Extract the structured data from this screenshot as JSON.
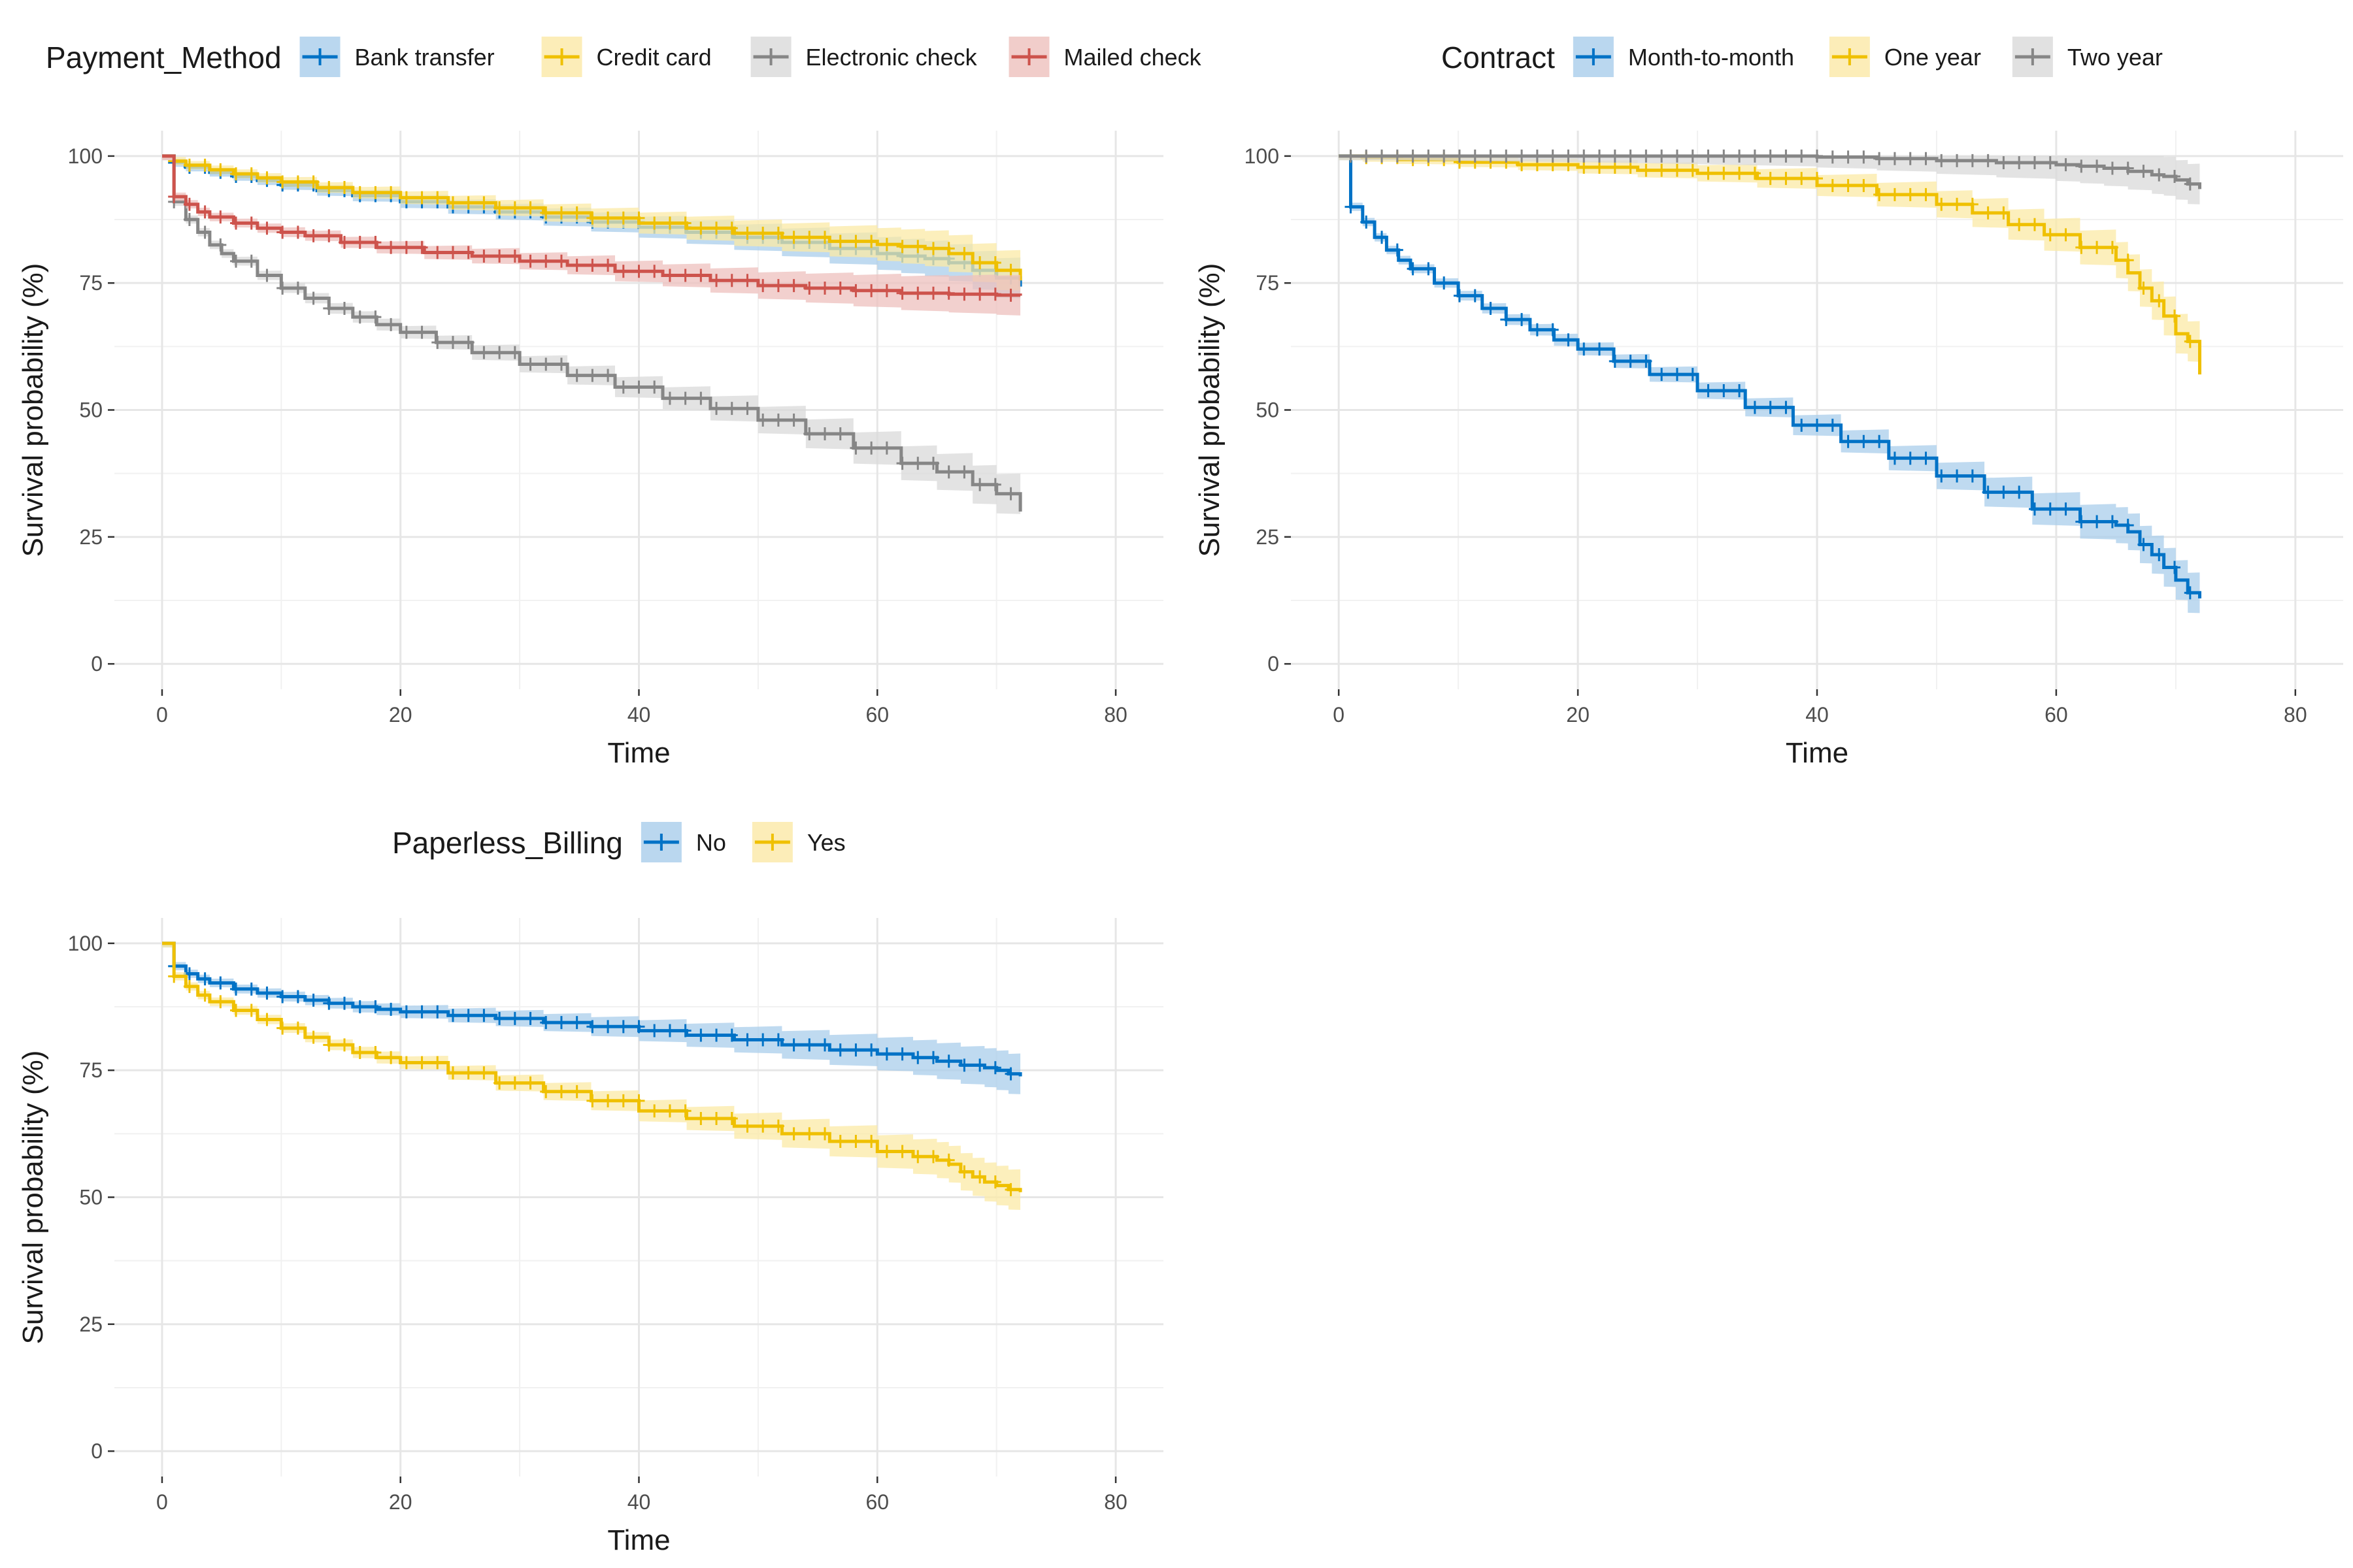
{
  "chart_data": [
    {
      "type": "line",
      "legend": {
        "title": "Payment_Method",
        "placement": "top"
      },
      "xlabel": "Time",
      "ylabel": "Survival probability (%)",
      "xlim": [
        0,
        80
      ],
      "ylim": [
        0,
        100
      ],
      "xticks": [
        0,
        20,
        40,
        60,
        80
      ],
      "yticks": [
        0,
        25,
        50,
        75,
        100
      ],
      "grid": true,
      "series": [
        {
          "name": "Bank transfer",
          "color": "#0072C6",
          "fill": "#A9CDEB",
          "x": [
            0,
            1,
            2,
            4,
            6,
            8,
            10,
            13,
            16,
            20,
            24,
            28,
            32,
            36,
            40,
            44,
            48,
            52,
            56,
            60,
            62,
            64,
            66,
            68,
            70,
            72
          ],
          "y": [
            100,
            98.7,
            97.8,
            96.8,
            96.0,
            95.2,
            94.3,
            93.2,
            92.2,
            91.0,
            90.0,
            89.0,
            88.0,
            87.0,
            86.0,
            85.0,
            84.0,
            83.0,
            81.8,
            80.8,
            80.3,
            79.8,
            79.0,
            77.5,
            76.0,
            74.3
          ]
        },
        {
          "name": "Credit card",
          "color": "#EFC000",
          "fill": "#FBE9A6",
          "x": [
            0,
            1,
            2,
            4,
            6,
            8,
            10,
            13,
            16,
            20,
            24,
            28,
            32,
            36,
            40,
            44,
            48,
            52,
            56,
            60,
            62,
            64,
            66,
            68,
            70,
            72
          ],
          "y": [
            100,
            99.0,
            98.2,
            97.3,
            96.5,
            95.7,
            94.9,
            93.8,
            92.8,
            91.8,
            90.8,
            89.8,
            88.8,
            87.8,
            86.8,
            85.8,
            84.8,
            84.0,
            83.2,
            82.6,
            82.2,
            81.8,
            80.8,
            79.0,
            77.5,
            75.5
          ]
        },
        {
          "name": "Electronic check",
          "color": "#868686",
          "fill": "#D9D9D9",
          "x": [
            0,
            1,
            2,
            3,
            4,
            5,
            6,
            8,
            10,
            12,
            14,
            16,
            18,
            20,
            23,
            26,
            30,
            34,
            38,
            42,
            46,
            50,
            54,
            58,
            62,
            65,
            68,
            70,
            72
          ],
          "y": [
            100,
            91.0,
            87.5,
            85.0,
            82.5,
            80.8,
            79.3,
            76.5,
            74.0,
            72.0,
            70.0,
            68.3,
            66.8,
            65.3,
            63.3,
            61.3,
            59.0,
            56.8,
            54.5,
            52.3,
            50.3,
            48.0,
            45.3,
            42.5,
            39.5,
            37.8,
            35.3,
            33.5,
            30.0
          ]
        },
        {
          "name": "Mailed check",
          "color": "#CD534C",
          "fill": "#EEC0BD",
          "x": [
            0,
            1,
            2,
            3,
            4,
            6,
            8,
            10,
            12,
            15,
            18,
            22,
            26,
            30,
            34,
            38,
            42,
            46,
            50,
            54,
            58,
            62,
            66,
            70,
            72
          ],
          "y": [
            100,
            92.0,
            90.5,
            89.0,
            88.0,
            86.8,
            85.8,
            85.0,
            84.3,
            83.0,
            82.0,
            81.0,
            80.3,
            79.3,
            78.5,
            77.3,
            76.5,
            75.5,
            74.5,
            74.0,
            73.5,
            73.0,
            72.8,
            72.6,
            72.5
          ]
        }
      ]
    },
    {
      "type": "line",
      "legend": {
        "title": "Contract",
        "placement": "top"
      },
      "xlabel": "Time",
      "ylabel": "Survival probability (%)",
      "xlim": [
        0,
        80
      ],
      "ylim": [
        0,
        100
      ],
      "xticks": [
        0,
        20,
        40,
        60,
        80
      ],
      "yticks": [
        0,
        25,
        50,
        75,
        100
      ],
      "grid": true,
      "series": [
        {
          "name": "Month-to-month",
          "color": "#0072C6",
          "fill": "#A9CDEB",
          "x": [
            0,
            1,
            2,
            3,
            4,
            5,
            6,
            8,
            10,
            12,
            14,
            16,
            18,
            20,
            23,
            26,
            30,
            34,
            38,
            42,
            46,
            50,
            54,
            58,
            62,
            65,
            66,
            67,
            68,
            69,
            70,
            71,
            72
          ],
          "y": [
            100,
            90.0,
            87.0,
            84.0,
            81.5,
            79.5,
            77.8,
            75.0,
            72.5,
            70.0,
            67.8,
            65.8,
            63.8,
            62.0,
            59.6,
            57.0,
            53.8,
            50.5,
            47.0,
            43.8,
            40.5,
            37.0,
            33.8,
            30.5,
            28.0,
            27.3,
            26.0,
            23.5,
            21.5,
            19.0,
            16.5,
            14.0,
            12.9
          ]
        },
        {
          "name": "One year",
          "color": "#EFC000",
          "fill": "#FBE9A6",
          "x": [
            0,
            2,
            5,
            10,
            15,
            20,
            25,
            30,
            35,
            40,
            45,
            50,
            53,
            56,
            59,
            62,
            65,
            66,
            67,
            68,
            69,
            70,
            71,
            72
          ],
          "y": [
            100,
            99.7,
            99.3,
            98.8,
            98.3,
            97.8,
            97.2,
            96.6,
            95.6,
            94.2,
            92.4,
            90.5,
            88.8,
            86.5,
            84.5,
            82.0,
            79.5,
            77.0,
            74.0,
            71.5,
            68.5,
            65.0,
            63.5,
            57.0
          ]
        },
        {
          "name": "Two year",
          "color": "#868686",
          "fill": "#D9D9D9",
          "x": [
            0,
            5,
            10,
            20,
            30,
            40,
            45,
            50,
            55,
            60,
            62,
            64,
            66,
            68,
            69,
            70,
            71,
            72
          ],
          "y": [
            100,
            100,
            100,
            100,
            100,
            99.8,
            99.5,
            99.1,
            98.7,
            98.3,
            98.0,
            97.6,
            97.0,
            96.3,
            96.0,
            95.3,
            94.5,
            93.5
          ]
        }
      ]
    },
    {
      "type": "line",
      "legend": {
        "title": "Paperless_Billing",
        "placement": "top"
      },
      "xlabel": "Time",
      "ylabel": "Survival probability (%)",
      "xlim": [
        0,
        80
      ],
      "ylim": [
        0,
        100
      ],
      "xticks": [
        0,
        20,
        40,
        60,
        80
      ],
      "yticks": [
        0,
        25,
        50,
        75,
        100
      ],
      "grid": true,
      "series": [
        {
          "name": "No",
          "color": "#0072C6",
          "fill": "#A9CDEB",
          "x": [
            0,
            1,
            2,
            3,
            4,
            6,
            8,
            10,
            12,
            14,
            16,
            18,
            20,
            24,
            28,
            32,
            36,
            40,
            44,
            48,
            52,
            56,
            60,
            63,
            65,
            67,
            69,
            70,
            71,
            72
          ],
          "y": [
            100,
            95.5,
            94.0,
            93.0,
            92.2,
            91.0,
            90.2,
            89.5,
            88.8,
            88.2,
            87.5,
            87.0,
            86.5,
            85.8,
            85.2,
            84.4,
            83.6,
            82.8,
            81.9,
            81.0,
            80.0,
            79.0,
            78.2,
            77.5,
            76.8,
            76.0,
            75.5,
            75.0,
            74.3,
            73.8
          ]
        },
        {
          "name": "Yes",
          "color": "#EFC000",
          "fill": "#FBE9A6",
          "x": [
            0,
            1,
            2,
            3,
            4,
            6,
            8,
            10,
            12,
            14,
            16,
            18,
            20,
            24,
            28,
            32,
            36,
            40,
            44,
            48,
            52,
            56,
            60,
            63,
            65,
            66,
            67,
            68,
            69,
            70,
            71,
            72
          ],
          "y": [
            100,
            93.5,
            91.5,
            89.8,
            88.5,
            86.8,
            85.0,
            83.3,
            81.5,
            80.0,
            78.5,
            77.5,
            76.5,
            74.5,
            72.5,
            70.8,
            69.0,
            67.0,
            65.5,
            64.0,
            62.5,
            61.0,
            59.0,
            58.0,
            57.3,
            56.5,
            55.0,
            54.0,
            53.0,
            52.3,
            51.5,
            51.0
          ]
        }
      ]
    }
  ]
}
